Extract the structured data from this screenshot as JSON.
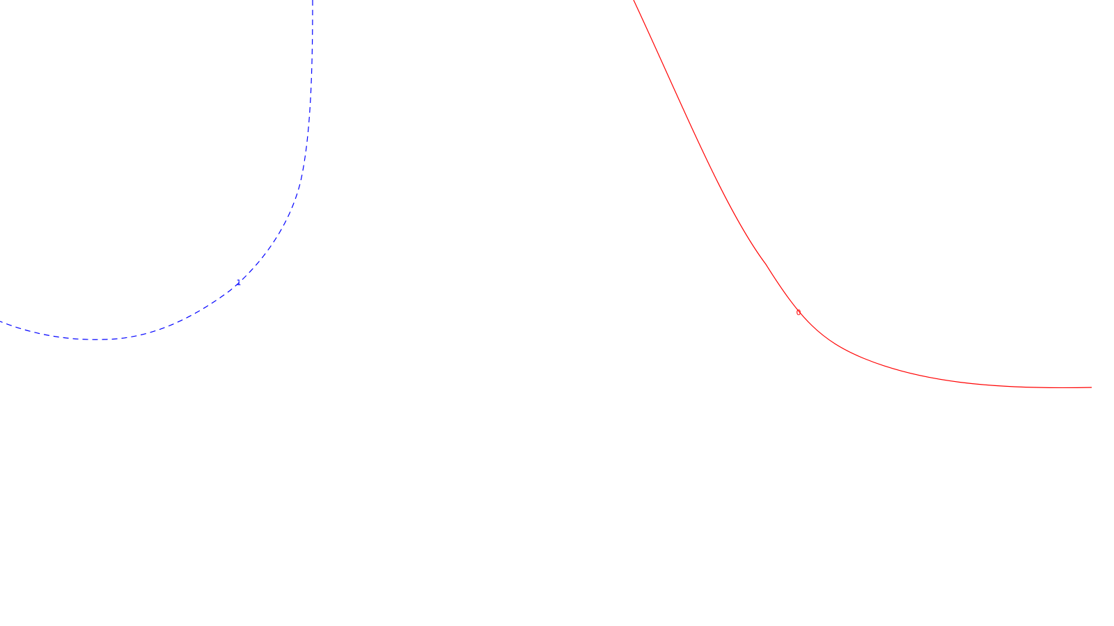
{
  "curves": [
    {
      "id": "curve-0",
      "label": "0",
      "color": "#ff0000",
      "style": "solid"
    },
    {
      "id": "curve-1",
      "label": "1",
      "color": "#0000ff",
      "style": "dashed"
    }
  ]
}
